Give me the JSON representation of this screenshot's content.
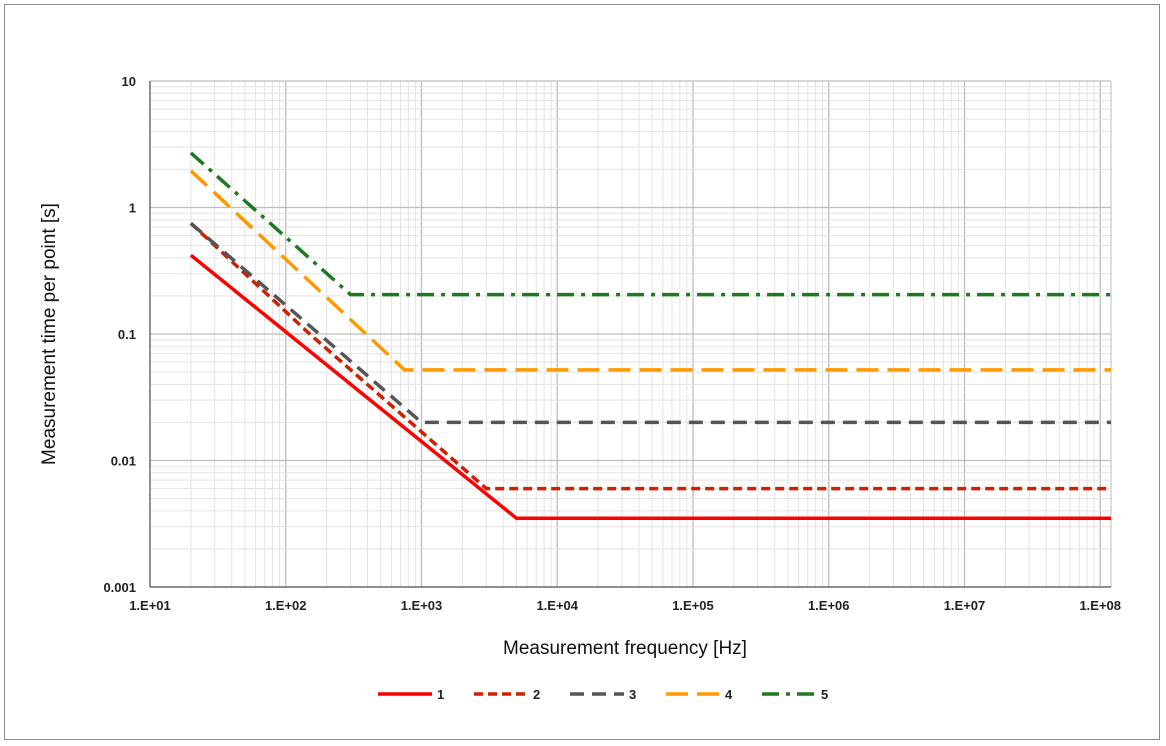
{
  "chart_data": {
    "type": "line",
    "xscale": "log",
    "yscale": "log",
    "xlim": [
      10,
      120000000
    ],
    "ylim": [
      0.001,
      10
    ],
    "xlabel": "Measurement frequency [Hz]",
    "ylabel": "Measurement time per point [s]",
    "x_ticks": [
      "1.E+01",
      "1.E+02",
      "1.E+03",
      "1.E+04",
      "1.E+05",
      "1.E+06",
      "1.E+07",
      "1.E+08"
    ],
    "y_ticks": [
      "0.001",
      "0.01",
      "0.1",
      "1",
      "10"
    ],
    "grid": true,
    "legend_position": "bottom",
    "series": [
      {
        "name": "1",
        "color": "#ff0000",
        "style": "solid",
        "points": [
          [
            20,
            0.42
          ],
          [
            5000,
            0.0035
          ],
          [
            120000000,
            0.0035
          ]
        ]
      },
      {
        "name": "2",
        "color": "#cc2200",
        "style": "short-dash",
        "points": [
          [
            20,
            0.75
          ],
          [
            150,
            0.1
          ],
          [
            3000,
            0.006
          ],
          [
            120000000,
            0.006
          ]
        ]
      },
      {
        "name": "3",
        "color": "#555555",
        "style": "dash",
        "points": [
          [
            20,
            0.75
          ],
          [
            1000,
            0.02
          ],
          [
            120000000,
            0.02
          ]
        ]
      },
      {
        "name": "4",
        "color": "#ff9900",
        "style": "long-dash",
        "points": [
          [
            20,
            1.95
          ],
          [
            750,
            0.052
          ],
          [
            120000000,
            0.052
          ]
        ]
      },
      {
        "name": "5",
        "color": "#1e7a1e",
        "style": "dash-dot",
        "points": [
          [
            20,
            2.7
          ],
          [
            300,
            0.205
          ],
          [
            120000000,
            0.205
          ]
        ]
      }
    ]
  }
}
